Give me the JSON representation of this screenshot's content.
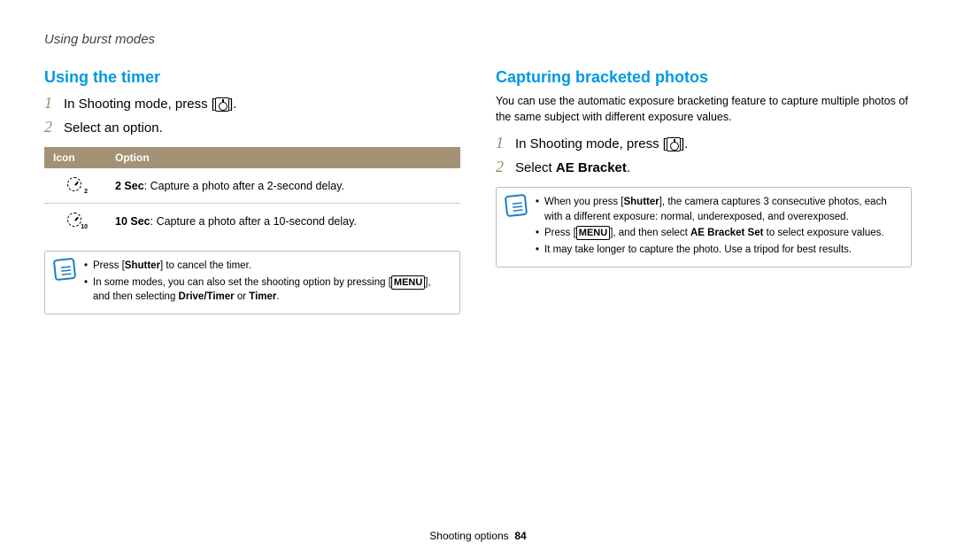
{
  "breadcrumb": "Using burst modes",
  "left": {
    "heading": "Using the timer",
    "steps": [
      {
        "num": "1",
        "pre": "In Shooting mode, press [",
        "post": "]."
      },
      {
        "num": "2",
        "text": "Select an option."
      }
    ],
    "table": {
      "headers": [
        "Icon",
        "Option"
      ],
      "rows": [
        {
          "sub": "2",
          "bold": "2 Sec",
          "desc": ": Capture a photo after a 2-second delay."
        },
        {
          "sub": "10",
          "bold": "10 Sec",
          "desc": ": Capture a photo after a 10-second delay."
        }
      ]
    },
    "note": {
      "items": [
        {
          "pre": "Press [",
          "b1": "Shutter",
          "post": "] to cancel the timer."
        },
        {
          "pre": "In some modes, you can also set the shooting option by pressing [",
          "menu": "MENU",
          "mid": "], and then selecting ",
          "b1": "Drive/Timer",
          "or": " or ",
          "b2": "Timer",
          "end": "."
        }
      ]
    }
  },
  "right": {
    "heading": "Capturing bracketed photos",
    "intro": "You can use the automatic exposure bracketing feature to capture multiple photos of the same subject with different exposure values.",
    "steps": [
      {
        "num": "1",
        "pre": "In Shooting mode, press [",
        "post": "]."
      },
      {
        "num": "2",
        "pre": "Select ",
        "bold": "AE Bracket",
        "post": "."
      }
    ],
    "note": {
      "items": [
        {
          "pre": "When you press [",
          "b1": "Shutter",
          "post": "], the camera captures 3 consecutive photos, each with a different exposure: normal, underexposed, and overexposed."
        },
        {
          "pre": "Press [",
          "menu": "MENU",
          "mid": "], and then select ",
          "b1": "AE Bracket Set",
          "post": " to select exposure values."
        },
        {
          "plain": "It may take longer to capture the photo. Use a tripod for best results."
        }
      ]
    }
  },
  "footer": {
    "label": "Shooting options",
    "page": "84"
  }
}
